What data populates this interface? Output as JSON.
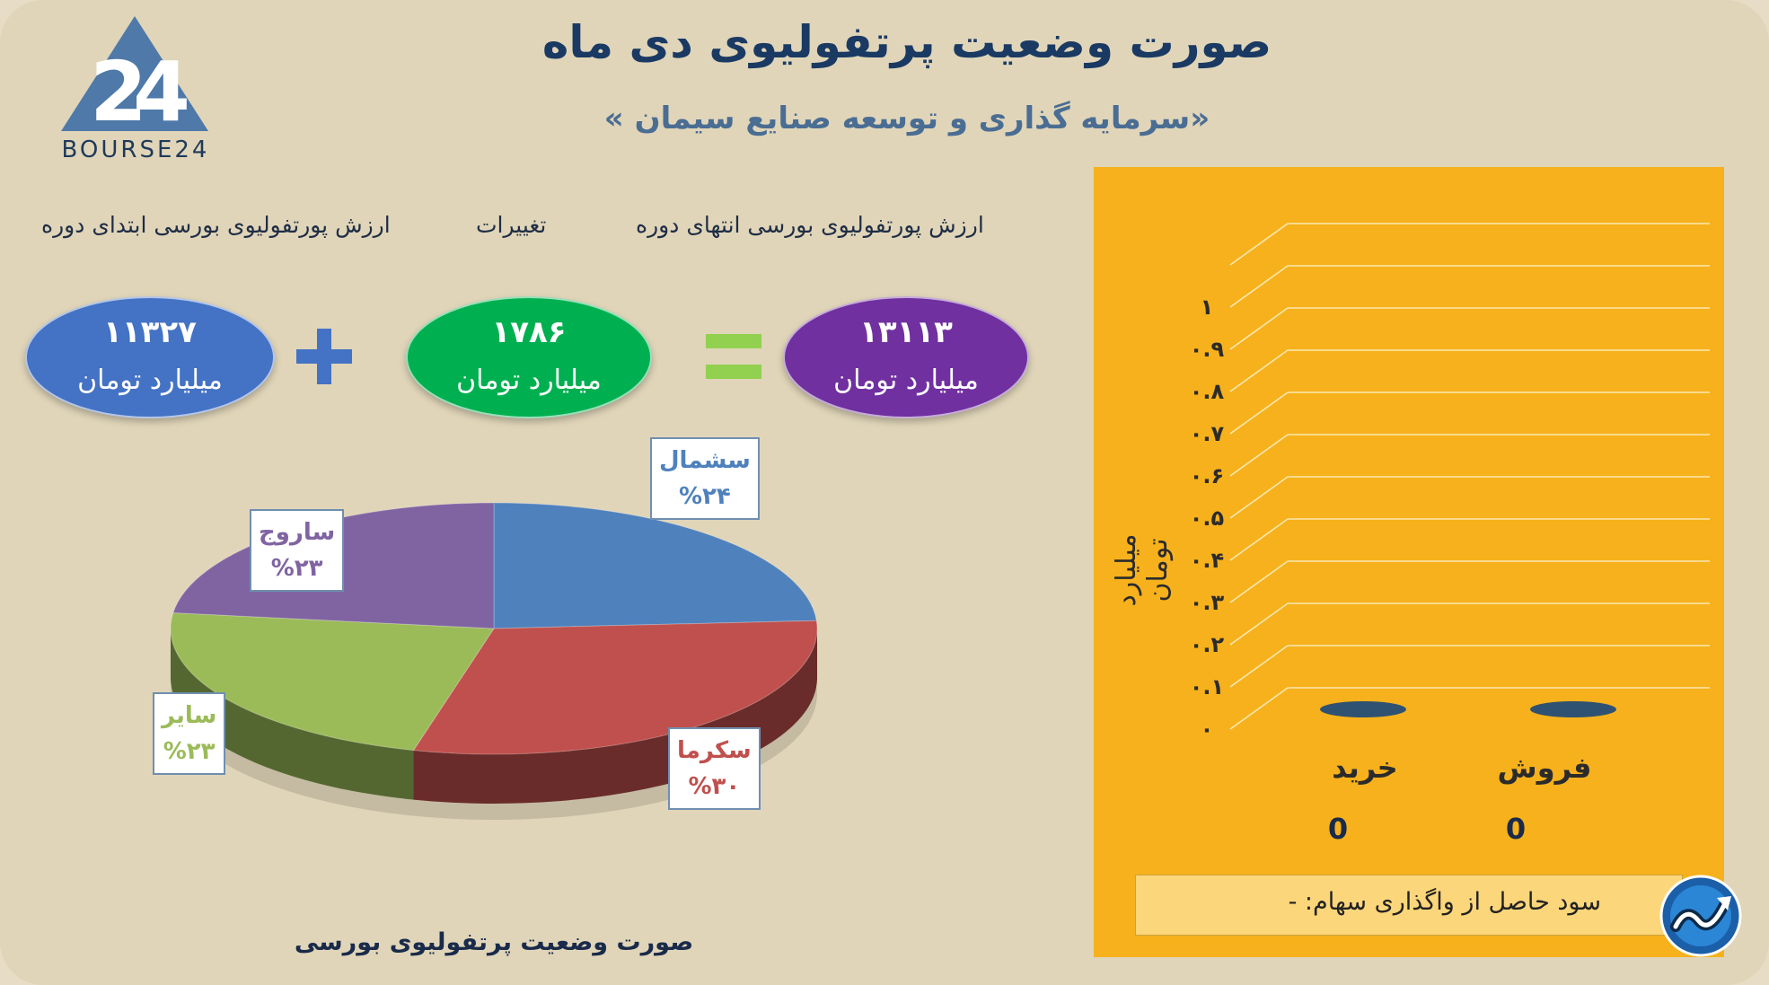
{
  "page": {
    "title": "صورت وضعیت پرتفولیوی دی ماه",
    "subtitle": "«سرمایه گذاری و توسعه صنایع سیمان »",
    "logo_text": "BOURSE24",
    "colors": {
      "background": "#e0d5b9",
      "title": "#1a3a63",
      "panel": "#f6b11c"
    }
  },
  "summary": {
    "headers": {
      "start": "ارزش پورتفولیوی بورسی ابتدای دوره",
      "change": "تغییرات",
      "end": "ارزش پورتفولیوی بورسی انتهای دوره"
    },
    "start": {
      "value": "۱۱۳۲۷",
      "unit": "میلیارد تومان",
      "color": "#4472c4"
    },
    "change": {
      "value": "۱۷۸۶",
      "unit": "میلیارد تومان",
      "color": "#00b050"
    },
    "end": {
      "value": "۱۳۱۱۳",
      "unit": "میلیارد تومان",
      "color": "#7030a0"
    },
    "plus_icon": "plus-icon",
    "equals_icon": "equals-icon"
  },
  "chart_data": [
    {
      "type": "pie",
      "title": "صورت وضعیت پرتفولیوی بورسی",
      "slices": [
        {
          "label": "سشمال",
          "value": 24,
          "display": "%۲۴",
          "color": "#4f81bd"
        },
        {
          "label": "سکرما",
          "value": 30,
          "display": "%۳۰",
          "color": "#c0504d"
        },
        {
          "label": "سایر",
          "value": 23,
          "display": "%۲۳",
          "color": "#9bbb59"
        },
        {
          "label": "ساروج",
          "value": 23,
          "display": "%۲۳",
          "color": "#8064a2"
        }
      ]
    },
    {
      "type": "bar",
      "ylabel": "میلیارد تومان",
      "categories": [
        "خرید",
        "فروش"
      ],
      "values": [
        0,
        0
      ],
      "value_labels": [
        "0",
        "0"
      ],
      "ylim": [
        0,
        1
      ],
      "yticks": [
        "۰",
        "۰.۱",
        "۰.۲",
        "۰.۳",
        "۰.۴",
        "۰.۵",
        "۰.۶",
        "۰.۷",
        "۰.۸",
        "۰.۹",
        "۱"
      ],
      "grid": true,
      "bar_color": "#2f5272"
    }
  ],
  "profit_note": "سود حاصل از واگذاری سهام: -",
  "badge_icon": "trend-up-icon"
}
